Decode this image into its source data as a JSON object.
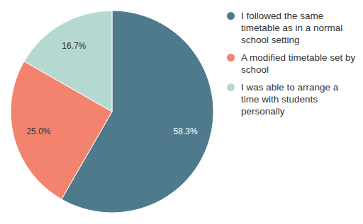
{
  "chart_data": {
    "type": "pie",
    "categories": [
      "I followed the same timetable as in a normal school setting",
      "A modified timetable set by school",
      "I was able to arrange a time with students personally"
    ],
    "values": [
      58.3,
      25.0,
      16.7
    ],
    "value_labels": [
      "58.3%",
      "25.0%",
      "16.7%"
    ],
    "colors": [
      "#4e7a8c",
      "#f3826f",
      "#b5d9d0"
    ],
    "data_labels": true,
    "legend": "right"
  }
}
